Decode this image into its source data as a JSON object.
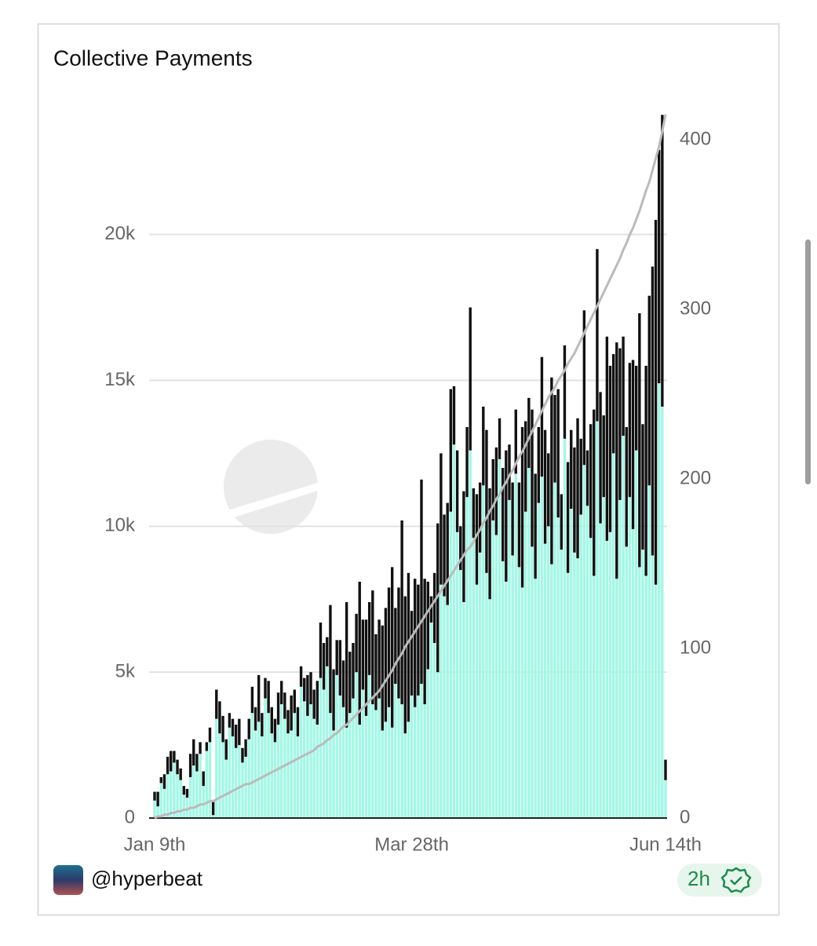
{
  "chart_data": {
    "type": "stacked-bar-line",
    "title": "Collective Payments",
    "categories": [
      "Jan 9th",
      null,
      null,
      null,
      null,
      null,
      null,
      null,
      null,
      null,
      null,
      null,
      null,
      null,
      null,
      null,
      null,
      null,
      null,
      null,
      null,
      null,
      null,
      null,
      null,
      null,
      null,
      null,
      null,
      null,
      null,
      null,
      null,
      null,
      null,
      null,
      null,
      null,
      null,
      null,
      null,
      null,
      null,
      null,
      null,
      null,
      null,
      null,
      null,
      null,
      null,
      null,
      null,
      null,
      null,
      null,
      null,
      null,
      null,
      null,
      null,
      null,
      null,
      null,
      null,
      null,
      null,
      null,
      null,
      null,
      null,
      null,
      null,
      null,
      null,
      null,
      null,
      null,
      null,
      "Mar 28th",
      null,
      null,
      null,
      null,
      null,
      null,
      null,
      null,
      null,
      null,
      null,
      null,
      null,
      null,
      null,
      null,
      null,
      null,
      null,
      null,
      null,
      null,
      null,
      null,
      null,
      null,
      null,
      null,
      null,
      null,
      null,
      null,
      null,
      null,
      null,
      null,
      null,
      null,
      null,
      null,
      null,
      null,
      null,
      null,
      null,
      null,
      null,
      null,
      null,
      null,
      null,
      null,
      null,
      null,
      null,
      null,
      null,
      null,
      null,
      null,
      null,
      null,
      null,
      null,
      null,
      null,
      null,
      null,
      null,
      null,
      null,
      null,
      null,
      null,
      null,
      null,
      null,
      "Jun 14th"
    ],
    "series": [
      {
        "color": "#a3f7e6",
        "values": [
          0.6,
          0.4,
          1.2,
          1.0,
          1.5,
          1.6,
          1.9,
          1.5,
          1.3,
          0.8,
          0.7,
          1.4,
          1.8,
          1.6,
          2.2,
          1.1,
          2.3,
          2.6,
          0.1,
          3.4,
          2.9,
          2.6,
          2.0,
          3.1,
          2.8,
          2.4,
          2.5,
          1.9,
          2.1,
          2.7,
          3.6,
          3.0,
          3.3,
          2.8,
          4.1,
          3.6,
          2.9,
          2.6,
          3.2,
          3.9,
          3.4,
          2.9,
          3.0,
          3.6,
          2.8,
          4.5,
          4.0,
          3.5,
          3.9,
          3.4,
          3.2,
          4.8,
          4.4,
          5.2,
          3.6,
          3.0,
          4.9,
          4.2,
          3.8,
          3.1,
          3.6,
          4.1,
          5.0,
          3.2,
          4.4,
          3.5,
          4.9,
          3.9,
          3.7,
          4.1,
          3.0,
          3.3,
          3.8,
          3.1,
          4.6,
          4.1,
          3.9,
          2.9,
          3.3,
          4.2,
          3.8,
          4.2,
          4.6,
          3.9,
          5.1,
          6.7,
          6.0,
          5.0,
          8.0,
          7.6,
          7.3,
          10.5,
          12.8,
          9.8,
          8.5,
          7.4,
          11.0,
          12.6,
          9.6,
          8.0,
          9.1,
          11.4,
          8.4,
          7.5,
          10.2,
          9.7,
          12.3,
          8.8,
          8.1,
          10.9,
          9.0,
          11.8,
          8.6,
          7.9,
          10.5,
          12.0,
          9.3,
          8.2,
          10.8,
          11.7,
          9.4,
          10.0,
          8.7,
          11.5,
          10.3,
          9.2,
          13.0,
          8.4,
          10.6,
          9.1,
          8.9,
          10.4,
          12.1,
          10.7,
          9.6,
          8.3,
          13.6,
          10.1,
          11.0,
          9.5,
          9.8,
          12.5,
          8.2,
          10.9,
          13.1,
          9.3,
          11.0,
          9.9,
          12.6,
          8.6,
          9.2,
          8.3,
          11.4,
          9.0,
          8.0,
          14.9,
          14.1,
          1.3
        ]
      },
      {
        "color": "#111111",
        "values": [
          0.3,
          0.5,
          0.2,
          0.5,
          0.6,
          0.7,
          0.4,
          0.5,
          0.4,
          0.3,
          0.3,
          0.8,
          0.9,
          0.6,
          0.4,
          0.5,
          0.3,
          0.5,
          0.5,
          1.0,
          1.1,
          0.9,
          0.7,
          0.5,
          0.6,
          0.8,
          0.9,
          0.5,
          0.6,
          0.7,
          0.9,
          0.8,
          1.6,
          0.8,
          0.7,
          1.1,
          0.9,
          0.8,
          1.1,
          0.8,
          0.9,
          0.8,
          1.2,
          0.8,
          1.0,
          0.7,
          0.8,
          1.4,
          1.1,
          1.0,
          1.5,
          1.9,
          1.6,
          1.0,
          3.7,
          2.1,
          1.2,
          1.9,
          1.6,
          4.3,
          2.1,
          1.9,
          2.0,
          4.9,
          2.4,
          3.3,
          2.5,
          3.9,
          2.6,
          2.7,
          3.6,
          3.9,
          4.1,
          5.5,
          2.6,
          3.8,
          6.3,
          4.7,
          5.1,
          2.9,
          4.4,
          3.8,
          7.0,
          4.3,
          3.0,
          0.9,
          2.4,
          5.1,
          4.5,
          2.8,
          3.5,
          4.2,
          2.0,
          2.8,
          1.5,
          3.8,
          2.4,
          4.9,
          1.7,
          3.1,
          2.4,
          2.7,
          4.9,
          3.8,
          2.1,
          3.0,
          1.4,
          3.2,
          4.5,
          1.9,
          2.5,
          2.2,
          2.9,
          5.5,
          3.1,
          2.4,
          4.7,
          3.6,
          2.6,
          4.1,
          3.9,
          2.5,
          6.4,
          3.0,
          4.4,
          1.9,
          3.2,
          3.8,
          2.7,
          3.6,
          4.8,
          2.6,
          5.3,
          1.9,
          3.9,
          5.7,
          5.9,
          4.5,
          2.8,
          7.0,
          5.7,
          3.4,
          8.1,
          5.2,
          3.4,
          4.1,
          4.6,
          5.8,
          2.9,
          8.7,
          4.3,
          7.2,
          6.5,
          9.9,
          12.5,
          8.0,
          10.0,
          0.7
        ]
      },
      {
        "color": "#bbbbbb",
        "axis": "y2",
        "kind": "line",
        "values": [
          0,
          1,
          1,
          2,
          2,
          3,
          3,
          4,
          4,
          5,
          5,
          6,
          6,
          7,
          8,
          8,
          9,
          10,
          10,
          11,
          12,
          13,
          14,
          15,
          16,
          17,
          18,
          19,
          20,
          20,
          21,
          22,
          23,
          24,
          25,
          26,
          27,
          28,
          29,
          30,
          31,
          32,
          33,
          34,
          35,
          36,
          37,
          38,
          39,
          40,
          42,
          43,
          44,
          46,
          47,
          49,
          50,
          52,
          54,
          55,
          57,
          59,
          61,
          63,
          65,
          67,
          69,
          71,
          73,
          75,
          78,
          81,
          84,
          87,
          91,
          94,
          97,
          101,
          104,
          107,
          110,
          113,
          116,
          119,
          122,
          125,
          128,
          131,
          134,
          137,
          140,
          143,
          146,
          149,
          152,
          155,
          158,
          160,
          163,
          167,
          170,
          174,
          177,
          181,
          184,
          188,
          191,
          195,
          198,
          202,
          205,
          209,
          213,
          216,
          220,
          224,
          228,
          232,
          236,
          240,
          244,
          248,
          251,
          254,
          258,
          261,
          264,
          268,
          271,
          274,
          278,
          282,
          286,
          290,
          294,
          298,
          302,
          306,
          310,
          314,
          318,
          322,
          326,
          330,
          335,
          339,
          344,
          348,
          353,
          358,
          364,
          370,
          375,
          382,
          389,
          396,
          405,
          415
        ]
      }
    ],
    "ylim": [
      0,
      24
    ],
    "yticks": [
      0,
      {
        "value": 5,
        "label": "5k"
      },
      {
        "value": 10,
        "label": "10k"
      },
      {
        "value": 15,
        "label": "15k"
      },
      {
        "value": 20,
        "label": "20k"
      }
    ],
    "y2lim": [
      0,
      413
    ],
    "y2ticks": [
      0,
      100,
      200,
      300,
      400
    ],
    "grid": true
  },
  "footer": {
    "handle": "@hyperbeat",
    "badge": "2h"
  }
}
